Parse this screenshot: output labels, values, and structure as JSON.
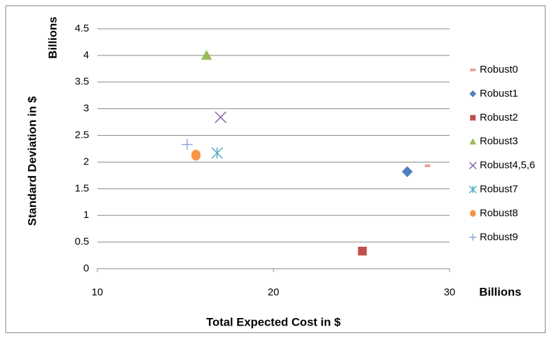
{
  "chart_data": {
    "type": "scatter",
    "xlabel": "Total Expected Cost in $",
    "ylabel": "Standard Deviation in $",
    "x_unit_label": "Billions",
    "y_unit_label": "Billions",
    "xlim": [
      10,
      30
    ],
    "xticks": [
      10,
      20,
      30
    ],
    "ylim": [
      0,
      4.5
    ],
    "yticks": [
      0,
      0.5,
      1,
      1.5,
      2,
      2.5,
      3,
      3.5,
      4,
      4.5
    ],
    "grid": true,
    "legend": "right",
    "series": [
      {
        "name": "Robust0",
        "color": "#e6a0a0",
        "marker": "dash",
        "x": [
          28.75
        ],
        "values": [
          1.93
        ]
      },
      {
        "name": "Robust1",
        "color": "#4f81bd",
        "marker": "diamond",
        "x": [
          27.6
        ],
        "values": [
          1.82
        ]
      },
      {
        "name": "Robust2",
        "color": "#c0504d",
        "marker": "square",
        "x": [
          25.05
        ],
        "values": [
          0.33
        ]
      },
      {
        "name": "Robust3",
        "color": "#9bbb59",
        "marker": "triangle",
        "x": [
          16.2
        ],
        "values": [
          4.0
        ]
      },
      {
        "name": "Robust4,5,6",
        "color": "#8064a2",
        "marker": "x",
        "x": [
          17.0
        ],
        "values": [
          2.84
        ]
      },
      {
        "name": "Robust7",
        "color": "#4bacc6",
        "marker": "star",
        "x": [
          16.8
        ],
        "values": [
          2.17
        ]
      },
      {
        "name": "Robust8",
        "color": "#f79646",
        "marker": "circle",
        "x": [
          15.6
        ],
        "values": [
          2.13
        ]
      },
      {
        "name": "Robust9",
        "color": "#8ea9db",
        "marker": "plus",
        "x": [
          15.1
        ],
        "values": [
          2.33
        ]
      }
    ]
  }
}
